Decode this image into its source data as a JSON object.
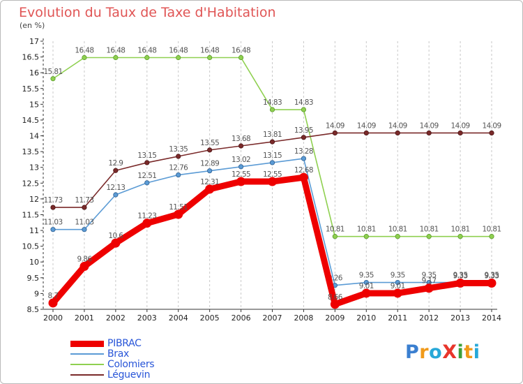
{
  "header": {
    "title": "Evolution du Taux de Taxe d'Habitation",
    "unit": "(en %)"
  },
  "logo": {
    "text": "ProXiti",
    "letter_colors": [
      "#3a7fd0",
      "#f09a1a",
      "#27a8d8",
      "#e8352b",
      "#3b9f3a",
      "#f09a1a",
      "#27a8d8"
    ]
  },
  "chart_data": {
    "type": "line",
    "x": [
      "2000",
      "2001",
      "2002",
      "2003",
      "2004",
      "2005",
      "2006",
      "2007",
      "2008",
      "2009",
      "2010",
      "2011",
      "2012",
      "2013",
      "2014"
    ],
    "ylim": [
      8.5,
      17
    ],
    "yticks": [
      "8.5",
      "9",
      "9.5",
      "10",
      "10.5",
      "11",
      "11.5",
      "12",
      "12.5",
      "13",
      "13.5",
      "14",
      "14.5",
      "15",
      "15.5",
      "16",
      "16.5",
      "17"
    ],
    "grid": "vertical dashed",
    "legend": "bottom-left",
    "series": [
      {
        "name": "PIBRAC",
        "color": "#ee0000",
        "values": [
          8.7,
          9.86,
          10.6,
          11.23,
          11.51,
          12.31,
          12.55,
          12.55,
          12.68,
          8.66,
          9.01,
          9.01,
          9.17,
          9.33,
          9.33
        ],
        "labels": [
          "8.7",
          "9.86",
          "10.6",
          "11.23",
          "11.51",
          "12.31",
          "12.55",
          "12.55",
          "12.68",
          "8.66",
          "9.01",
          "9.01",
          "9.17",
          "9.33",
          "9.33"
        ]
      },
      {
        "name": "Brax",
        "color": "#5b9bd5",
        "values": [
          11.03,
          11.03,
          12.13,
          12.51,
          12.76,
          12.89,
          13.02,
          13.15,
          13.28,
          9.26,
          9.35,
          9.35,
          9.35,
          9.35,
          9.35
        ],
        "labels": [
          "11.03",
          "11.03",
          "12.13",
          "12.51",
          "12.76",
          "12.89",
          "13.02",
          "13.15",
          "13.28",
          "9.26",
          "9.35",
          "9.35",
          "9.35",
          "9.35",
          "9.35"
        ]
      },
      {
        "name": "Colomiers",
        "color": "#8fd050",
        "values": [
          15.81,
          16.48,
          16.48,
          16.48,
          16.48,
          16.48,
          16.48,
          14.83,
          14.83,
          10.81,
          10.81,
          10.81,
          10.81,
          10.81,
          10.81
        ],
        "labels": [
          "15.81",
          "16.48",
          "16.48",
          "16.48",
          "16.48",
          "16.48",
          "16.48",
          "14.83",
          "14.83",
          "10.81",
          "10.81",
          "10.81",
          "10.81",
          "10.81",
          "10.81"
        ]
      },
      {
        "name": "Léguevin",
        "color": "#7a2a2a",
        "values": [
          11.73,
          11.73,
          12.9,
          13.15,
          13.35,
          13.55,
          13.68,
          13.81,
          13.95,
          14.09,
          14.09,
          14.09,
          14.09,
          14.09,
          14.09
        ],
        "labels": [
          "11.73",
          "11.73",
          "12.9",
          "13.15",
          "13.35",
          "13.55",
          "13.68",
          "13.81",
          "13.95",
          "14.09",
          "14.09",
          "14.09",
          "14.09",
          "14.09",
          "14.09"
        ]
      }
    ]
  }
}
